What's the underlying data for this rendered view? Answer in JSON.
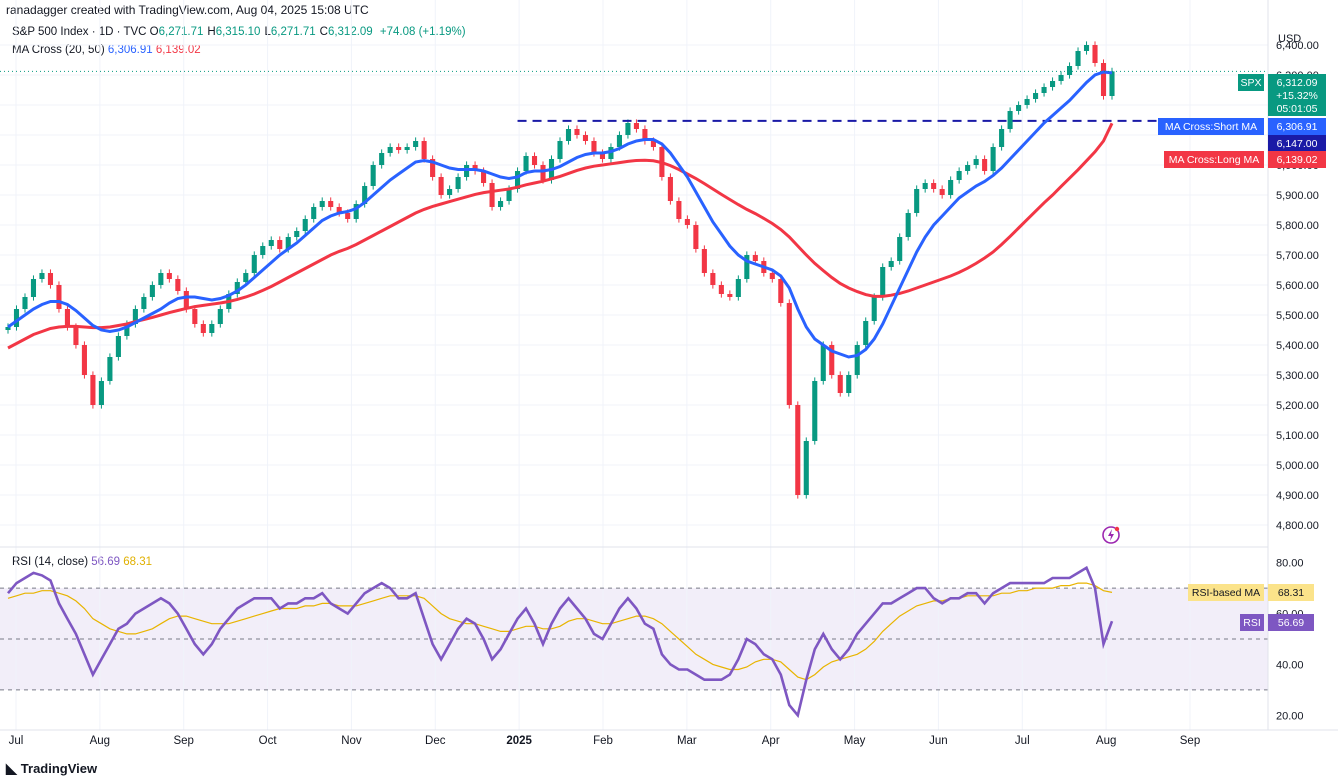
{
  "header": {
    "author_line": "ranadagger created with TradingView.com, Aug 04, 2025 15:08 UTC",
    "symbol_title": "S&P 500 Index · 1D · TVC",
    "ohlc": [
      {
        "label": "O",
        "value": "6,271.71"
      },
      {
        "label": "H",
        "value": "6,315.10"
      },
      {
        "label": "L",
        "value": "6,271.71"
      },
      {
        "label": "C",
        "value": "6,312.09"
      }
    ],
    "change": "+74.08 (+1.19%)",
    "ma_title": "MA Cross (20, 50)",
    "ma_short_value": "6,306.91",
    "ma_long_value": "6,139.02",
    "rsi_title": "RSI (14, close)",
    "rsi_value": "56.69",
    "rsi_ma_value": "68.31",
    "brand": "TradingView"
  },
  "price_axis": {
    "currency": "USD",
    "tick_labels": [
      "6,400.00",
      "6,300.00",
      "6,200.00",
      "6,100.00",
      "6,000.00",
      "5,900.00",
      "5,800.00",
      "5,700.00",
      "5,600.00",
      "5,500.00",
      "5,400.00",
      "5,300.00",
      "5,200.00",
      "5,100.00",
      "5,000.00",
      "4,900.00",
      "4,800.00"
    ]
  },
  "rsi_axis": {
    "tick_labels": [
      "80.00",
      "60.00",
      "40.00",
      "20.00"
    ]
  },
  "time_axis": {
    "tick_labels": [
      "Jul",
      "Aug",
      "Sep",
      "Oct",
      "Nov",
      "Dec",
      "2025",
      "Feb",
      "Mar",
      "Apr",
      "May",
      "Jun",
      "Jul",
      "Aug",
      "Sep"
    ]
  },
  "badges": {
    "spx": {
      "label": "SPX",
      "price": "6,312.09",
      "pct": "+15.32%",
      "countdown": "05:01:05"
    },
    "ma_short": {
      "label": "MA Cross:Short MA",
      "value": "6,306.91"
    },
    "level": {
      "value": "6,147.00"
    },
    "ma_long": {
      "label": "MA Cross:Long MA",
      "value": "6,139.02"
    },
    "rsi_ma": {
      "label": "RSI-based MA",
      "value": "68.31"
    },
    "rsi": {
      "label": "RSI",
      "value": "56.69"
    }
  },
  "colors": {
    "up": "#089981",
    "down": "#f23645",
    "ma_short": "#2962ff",
    "ma_long": "#f23645",
    "rsi": "#7e57c2",
    "rsi_ma": "#e8b400",
    "level": "#1a1aa6",
    "grid": "#f0f3fa"
  },
  "chart_data": {
    "type": "line",
    "price_range": [
      4750,
      6450
    ],
    "rsi_range": [
      15,
      85
    ],
    "support_level": 6147,
    "rsi_bands": [
      70,
      50,
      30
    ],
    "close": [
      5460,
      5520,
      5560,
      5620,
      5640,
      5600,
      5520,
      5460,
      5400,
      5300,
      5200,
      5280,
      5360,
      5430,
      5470,
      5520,
      5560,
      5600,
      5640,
      5620,
      5580,
      5520,
      5470,
      5440,
      5470,
      5520,
      5570,
      5610,
      5640,
      5700,
      5730,
      5750,
      5720,
      5760,
      5780,
      5820,
      5860,
      5880,
      5860,
      5840,
      5820,
      5870,
      5930,
      6000,
      6040,
      6060,
      6050,
      6060,
      6080,
      6020,
      5960,
      5900,
      5920,
      5960,
      6000,
      5980,
      5940,
      5860,
      5880,
      5920,
      5980,
      6030,
      6000,
      5950,
      6020,
      6080,
      6120,
      6100,
      6080,
      6040,
      6020,
      6060,
      6100,
      6140,
      6120,
      6080,
      6060,
      5960,
      5880,
      5820,
      5800,
      5720,
      5640,
      5600,
      5570,
      5560,
      5620,
      5700,
      5680,
      5640,
      5620,
      5540,
      5200,
      4900,
      5080,
      5280,
      5400,
      5300,
      5240,
      5300,
      5400,
      5480,
      5560,
      5660,
      5680,
      5760,
      5840,
      5920,
      5940,
      5920,
      5900,
      5950,
      5980,
      6000,
      6020,
      5980,
      6060,
      6120,
      6180,
      6200,
      6220,
      6240,
      6260,
      6280,
      6300,
      6330,
      6380,
      6400,
      6340,
      6230,
      6312
    ],
    "ma_short": [
      5460,
      5480,
      5500,
      5520,
      5535,
      5545,
      5545,
      5535,
      5515,
      5490,
      5465,
      5450,
      5445,
      5450,
      5460,
      5475,
      5490,
      5505,
      5520,
      5540,
      5555,
      5560,
      5560,
      5555,
      5550,
      5555,
      5565,
      5580,
      5600,
      5625,
      5650,
      5675,
      5700,
      5720,
      5740,
      5765,
      5790,
      5815,
      5830,
      5840,
      5845,
      5855,
      5875,
      5900,
      5925,
      5950,
      5970,
      5990,
      6010,
      6015,
      6010,
      6000,
      5990,
      5985,
      5985,
      5985,
      5980,
      5970,
      5960,
      5955,
      5960,
      5975,
      5980,
      5980,
      5985,
      5995,
      6010,
      6025,
      6035,
      6040,
      6040,
      6045,
      6055,
      6070,
      6080,
      6085,
      6085,
      6070,
      6040,
      6000,
      5960,
      5910,
      5860,
      5810,
      5770,
      5730,
      5700,
      5680,
      5670,
      5660,
      5650,
      5630,
      5590,
      5520,
      5460,
      5420,
      5400,
      5380,
      5370,
      5360,
      5365,
      5385,
      5420,
      5470,
      5530,
      5590,
      5650,
      5710,
      5760,
      5800,
      5830,
      5860,
      5890,
      5910,
      5930,
      5945,
      5965,
      5990,
      6020,
      6050,
      6080,
      6110,
      6140,
      6165,
      6190,
      6215,
      6245,
      6275,
      6300,
      6310,
      6307
    ],
    "ma_long": [
      5390,
      5405,
      5420,
      5435,
      5445,
      5455,
      5460,
      5462,
      5462,
      5460,
      5458,
      5458,
      5460,
      5465,
      5470,
      5478,
      5485,
      5492,
      5500,
      5508,
      5515,
      5522,
      5528,
      5532,
      5536,
      5540,
      5545,
      5552,
      5560,
      5570,
      5582,
      5595,
      5610,
      5625,
      5640,
      5655,
      5670,
      5685,
      5700,
      5712,
      5722,
      5735,
      5750,
      5765,
      5780,
      5795,
      5810,
      5825,
      5840,
      5852,
      5862,
      5870,
      5878,
      5886,
      5894,
      5902,
      5908,
      5912,
      5916,
      5920,
      5926,
      5934,
      5940,
      5946,
      5954,
      5962,
      5972,
      5982,
      5990,
      5996,
      6000,
      6004,
      6008,
      6012,
      6015,
      6016,
      6014,
      6008,
      5998,
      5985,
      5970,
      5955,
      5938,
      5920,
      5902,
      5885,
      5868,
      5852,
      5838,
      5822,
      5805,
      5785,
      5760,
      5730,
      5700,
      5672,
      5648,
      5625,
      5605,
      5590,
      5578,
      5568,
      5562,
      5562,
      5566,
      5572,
      5580,
      5590,
      5600,
      5610,
      5620,
      5630,
      5642,
      5656,
      5672,
      5690,
      5710,
      5735,
      5762,
      5790,
      5818,
      5846,
      5874,
      5900,
      5928,
      5956,
      5984,
      6014,
      6044,
      6080,
      6139
    ],
    "rsi": [
      68,
      72,
      74,
      76,
      75,
      73,
      64,
      58,
      52,
      44,
      36,
      42,
      48,
      54,
      56,
      60,
      62,
      64,
      66,
      64,
      60,
      54,
      48,
      44,
      48,
      54,
      58,
      62,
      64,
      66,
      66,
      66,
      62,
      64,
      64,
      66,
      66,
      68,
      64,
      62,
      60,
      64,
      68,
      70,
      72,
      70,
      66,
      66,
      68,
      58,
      48,
      42,
      48,
      54,
      58,
      56,
      50,
      42,
      46,
      52,
      58,
      62,
      56,
      48,
      56,
      62,
      66,
      62,
      58,
      52,
      50,
      56,
      62,
      66,
      62,
      56,
      54,
      44,
      40,
      38,
      38,
      36,
      34,
      34,
      34,
      36,
      42,
      50,
      48,
      44,
      42,
      36,
      24,
      20,
      34,
      46,
      52,
      46,
      42,
      46,
      52,
      56,
      60,
      64,
      64,
      66,
      68,
      70,
      70,
      66,
      64,
      66,
      66,
      68,
      68,
      64,
      68,
      70,
      72,
      72,
      72,
      72,
      72,
      74,
      74,
      74,
      76,
      78,
      70,
      48,
      57
    ],
    "rsi_ma": [
      66,
      67,
      68,
      68,
      69,
      69,
      68,
      67,
      65,
      62,
      58,
      56,
      54,
      53,
      52,
      52,
      53,
      54,
      56,
      58,
      59,
      59,
      58,
      57,
      56,
      56,
      56,
      57,
      58,
      59,
      60,
      61,
      62,
      62,
      62,
      63,
      63,
      64,
      64,
      63,
      63,
      63,
      64,
      65,
      66,
      67,
      67,
      67,
      67,
      66,
      63,
      60,
      58,
      57,
      56,
      56,
      55,
      54,
      53,
      53,
      54,
      55,
      55,
      54,
      54,
      55,
      57,
      58,
      58,
      57,
      56,
      56,
      57,
      58,
      59,
      59,
      58,
      56,
      53,
      50,
      47,
      44,
      42,
      40,
      39,
      38,
      38,
      39,
      41,
      42,
      42,
      41,
      38,
      35,
      34,
      36,
      39,
      41,
      42,
      43,
      44,
      46,
      49,
      53,
      56,
      59,
      61,
      63,
      64,
      65,
      65,
      66,
      66,
      67,
      67,
      67,
      67,
      68,
      68,
      69,
      69,
      70,
      70,
      70,
      71,
      71,
      72,
      72,
      71,
      69,
      68.31
    ]
  }
}
